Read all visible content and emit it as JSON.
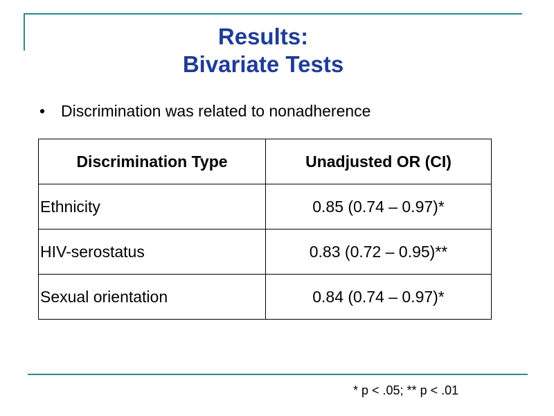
{
  "slide": {
    "title_line1": "Results:",
    "title_line2": "Bivariate Tests",
    "bullet_text": "Discrimination was related to nonadherence",
    "bullet_glyph": "•",
    "footnote": "* p < .05; ** p < .01",
    "accent_color": "#2b8a8a",
    "title_color": "#1f3c97"
  },
  "table": {
    "headers": [
      "Discrimination Type",
      "Unadjusted OR (CI)"
    ],
    "rows": [
      [
        "Ethnicity",
        "0.85 (0.74 – 0.97)*"
      ],
      [
        "HIV-serostatus",
        "0.83 (0.72 – 0.95)**"
      ],
      [
        "Sexual orientation",
        "0.84 (0.74 – 0.97)*"
      ]
    ]
  }
}
